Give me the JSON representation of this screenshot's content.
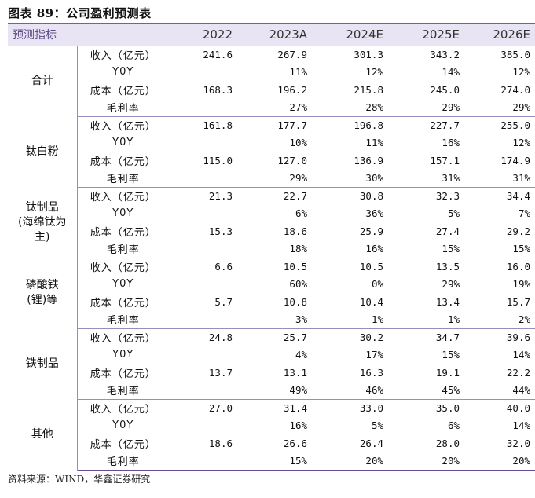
{
  "figure": {
    "title": "图表 89：公司盈利预测表",
    "source": "资料来源：WIND，华鑫证券研究"
  },
  "table": {
    "header": {
      "label": "预测指标",
      "years": [
        "2022",
        "2023A",
        "2024E",
        "2025E",
        "2026E"
      ]
    },
    "groups": [
      {
        "name_lines": [
          "合计"
        ],
        "rows": [
          {
            "metric": "收入（亿元）",
            "values": [
              "241.6",
              "267.9",
              "301.3",
              "343.2",
              "385.0"
            ]
          },
          {
            "metric": "Y0Y",
            "values": [
              "",
              "11%",
              "12%",
              "14%",
              "12%"
            ]
          },
          {
            "metric": "成本（亿元）",
            "values": [
              "168.3",
              "196.2",
              "215.8",
              "245.0",
              "274.0"
            ]
          },
          {
            "metric": "毛利率",
            "values": [
              "",
              "27%",
              "28%",
              "29%",
              "29%"
            ]
          }
        ]
      },
      {
        "name_lines": [
          "钛白粉"
        ],
        "rows": [
          {
            "metric": "收入（亿元）",
            "values": [
              "161.8",
              "177.7",
              "196.8",
              "227.7",
              "255.0"
            ]
          },
          {
            "metric": "Y0Y",
            "values": [
              "",
              "10%",
              "11%",
              "16%",
              "12%"
            ]
          },
          {
            "metric": "成本（亿元）",
            "values": [
              "115.0",
              "127.0",
              "136.9",
              "157.1",
              "174.9"
            ]
          },
          {
            "metric": "毛利率",
            "values": [
              "",
              "29%",
              "30%",
              "31%",
              "31%"
            ]
          }
        ]
      },
      {
        "name_lines": [
          "钛制品",
          "(海绵钛为",
          "主)"
        ],
        "rows": [
          {
            "metric": "收入（亿元）",
            "values": [
              "21.3",
              "22.7",
              "30.8",
              "32.3",
              "34.4"
            ]
          },
          {
            "metric": "Y0Y",
            "values": [
              "",
              "6%",
              "36%",
              "5%",
              "7%"
            ]
          },
          {
            "metric": "成本（亿元）",
            "values": [
              "15.3",
              "18.6",
              "25.9",
              "27.4",
              "29.2"
            ]
          },
          {
            "metric": "毛利率",
            "values": [
              "",
              "18%",
              "16%",
              "15%",
              "15%"
            ]
          }
        ]
      },
      {
        "name_lines": [
          "磷酸铁",
          "(锂)等"
        ],
        "rows": [
          {
            "metric": "收入（亿元）",
            "values": [
              "6.6",
              "10.5",
              "10.5",
              "13.5",
              "16.0"
            ]
          },
          {
            "metric": "Y0Y",
            "values": [
              "",
              "60%",
              "0%",
              "29%",
              "19%"
            ]
          },
          {
            "metric": "成本（亿元）",
            "values": [
              "5.7",
              "10.8",
              "10.4",
              "13.4",
              "15.7"
            ]
          },
          {
            "metric": "毛利率",
            "values": [
              "",
              "-3%",
              "1%",
              "1%",
              "2%"
            ]
          }
        ]
      },
      {
        "name_lines": [
          "铁制品"
        ],
        "rows": [
          {
            "metric": "收入（亿元）",
            "values": [
              "24.8",
              "25.7",
              "30.2",
              "34.7",
              "39.6"
            ]
          },
          {
            "metric": "Y0Y",
            "values": [
              "",
              "4%",
              "17%",
              "15%",
              "14%"
            ]
          },
          {
            "metric": "成本（亿元）",
            "values": [
              "13.7",
              "13.1",
              "16.3",
              "19.1",
              "22.2"
            ]
          },
          {
            "metric": "毛利率",
            "values": [
              "",
              "49%",
              "46%",
              "45%",
              "44%"
            ]
          }
        ]
      },
      {
        "name_lines": [
          "其他"
        ],
        "rows": [
          {
            "metric": "收入（亿元）",
            "values": [
              "27.0",
              "31.4",
              "33.0",
              "35.0",
              "40.0"
            ]
          },
          {
            "metric": "Y0Y",
            "values": [
              "",
              "16%",
              "5%",
              "6%",
              "14%"
            ]
          },
          {
            "metric": "成本（亿元）",
            "values": [
              "18.6",
              "26.6",
              "26.4",
              "28.0",
              "32.0"
            ]
          },
          {
            "metric": "毛利率",
            "values": [
              "",
              "15%",
              "20%",
              "20%",
              "20%"
            ]
          }
        ]
      }
    ]
  }
}
